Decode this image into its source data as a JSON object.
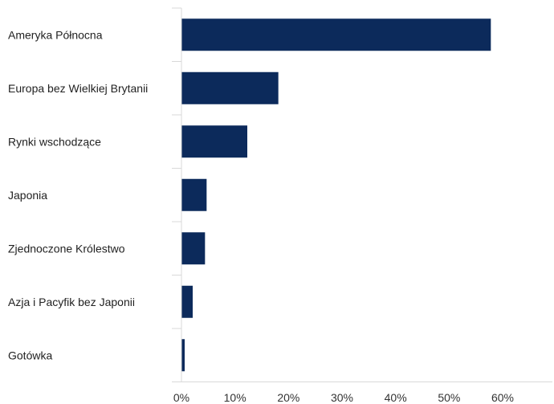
{
  "chart_data": {
    "type": "bar",
    "orientation": "horizontal",
    "categories": [
      "Ameryka Północna",
      "Europa bez Wielkiej Brytanii",
      "Rynki wschodzące",
      "Japonia",
      "Zjednoczone Królestwo",
      "Azja i Pacyfik bez Japonii",
      "Gotówka"
    ],
    "values": [
      57.8,
      18.1,
      12.3,
      4.7,
      4.4,
      2.1,
      0.6
    ],
    "xlim": [
      0,
      60
    ],
    "xticks": [
      0,
      10,
      20,
      30,
      40,
      50,
      60
    ],
    "xtick_labels": [
      "0%",
      "10%",
      "20%",
      "30%",
      "40%",
      "50%",
      "60%"
    ],
    "title": "",
    "xlabel": "",
    "ylabel": "",
    "grid": false,
    "legend": "none",
    "bar_color": "#0c2a5b",
    "axis_color": "#d9d9d9"
  }
}
